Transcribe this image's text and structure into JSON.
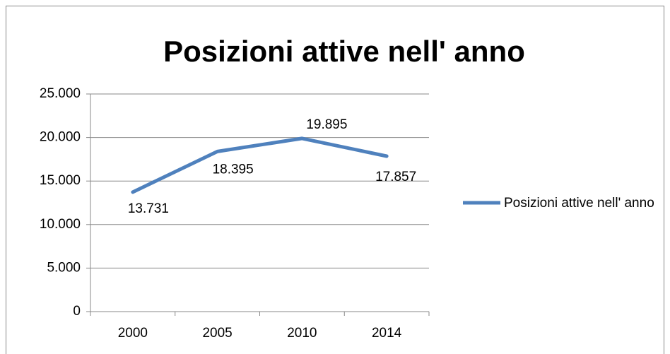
{
  "chart_data": {
    "type": "line",
    "title": "Posizioni attive nell' anno",
    "categories": [
      "2000",
      "2005",
      "2010",
      "2014"
    ],
    "series": [
      {
        "name": "Posizioni attive nell' anno",
        "color": "#4f81bd",
        "values": [
          13731,
          18395,
          19895,
          17857
        ],
        "value_labels": [
          "13.731",
          "18.395",
          "19.895",
          "17.857"
        ]
      }
    ],
    "ylim": [
      0,
      25000
    ],
    "yticks": [
      0,
      {
        "value": 5000,
        "label": "5.000"
      },
      {
        "value": 10000,
        "label": "10.000"
      },
      {
        "value": 15000,
        "label": "15.000"
      },
      {
        "value": 20000,
        "label": "20.000"
      },
      {
        "value": 25000,
        "label": "25.000"
      }
    ],
    "grid": true,
    "legend": "right"
  }
}
